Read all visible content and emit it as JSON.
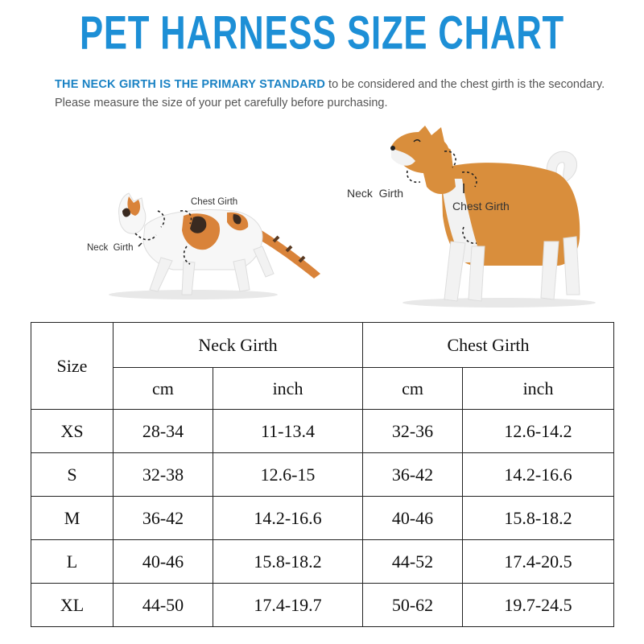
{
  "title": "PET HARNESS SIZE CHART",
  "intro": {
    "emphasis": "THE NECK GIRTH IS THE PRIMARY STANDARD",
    "rest": " to be considered and the chest girth is the secondary. Please measure the size of your pet carefully before purchasing."
  },
  "illustration": {
    "cat": {
      "neck_label": "Neck  Girth",
      "chest_label": "Chest Girth"
    },
    "dog": {
      "neck_label": "Neck  Girth",
      "chest_label": "Chest Girth"
    }
  },
  "table": {
    "size_header": "Size",
    "group_headers": [
      "Neck Girth",
      "Chest Girth"
    ],
    "unit_headers": [
      "cm",
      "inch",
      "cm",
      "inch"
    ],
    "rows": [
      {
        "size": "XS",
        "neck_cm": "28-34",
        "neck_inch": "11-13.4",
        "chest_cm": "32-36",
        "chest_inch": "12.6-14.2"
      },
      {
        "size": "S",
        "neck_cm": "32-38",
        "neck_inch": "12.6-15",
        "chest_cm": "36-42",
        "chest_inch": "14.2-16.6"
      },
      {
        "size": "M",
        "neck_cm": "36-42",
        "neck_inch": "14.2-16.6",
        "chest_cm": "40-46",
        "chest_inch": "15.8-18.2"
      },
      {
        "size": "L",
        "neck_cm": "40-46",
        "neck_inch": "15.8-18.2",
        "chest_cm": "44-52",
        "chest_inch": "17.4-20.5"
      },
      {
        "size": "XL",
        "neck_cm": "44-50",
        "neck_inch": "17.4-19.7",
        "chest_cm": "50-62",
        "chest_inch": "19.7-24.5"
      }
    ]
  },
  "colors": {
    "title": "#1d8fd6",
    "emphasis": "#1a82c4",
    "dog_fur": "#d98e3c",
    "cat_orange": "#d9833a"
  }
}
